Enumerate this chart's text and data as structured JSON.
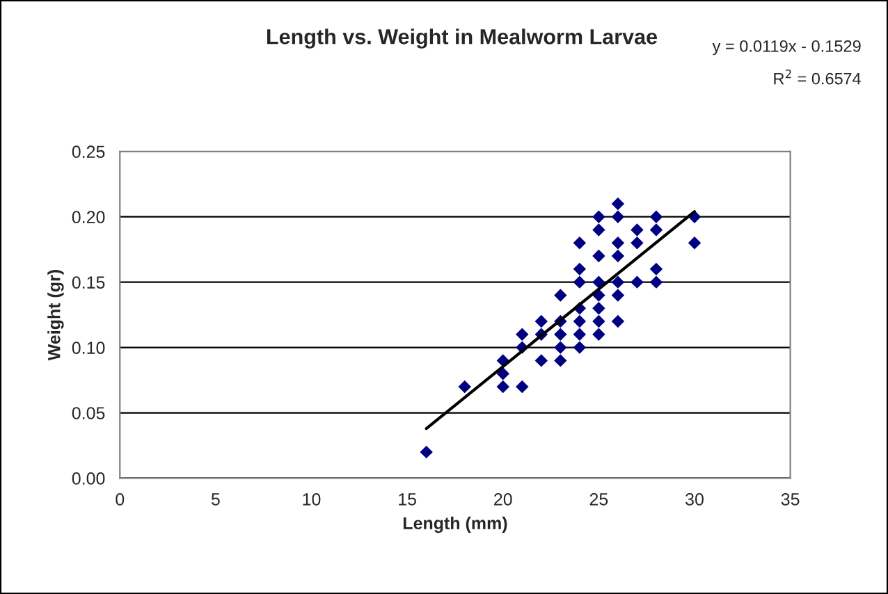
{
  "chart_data": {
    "type": "scatter",
    "title": "Length vs. Weight in Mealworm Larvae",
    "xlabel": "Length (mm)",
    "ylabel": "Weight (gr)",
    "annotations": [
      "y = 0.0119x - 0.1529",
      "R$^{2}$ = 0.6574"
    ],
    "series": [
      {
        "color": "#000080",
        "marker": "diamond",
        "x": [
          16,
          18,
          20,
          20,
          20,
          21,
          21,
          21,
          22,
          22,
          22,
          23,
          23,
          23,
          23,
          23,
          24,
          24,
          24,
          24,
          24,
          24,
          24,
          25,
          25,
          25,
          25,
          25,
          25,
          25,
          25,
          26,
          26,
          26,
          26,
          26,
          26,
          26,
          27,
          27,
          27,
          28,
          28,
          28,
          28,
          30,
          30
        ],
        "values": [
          0.02,
          0.07,
          0.07,
          0.08,
          0.09,
          0.07,
          0.1,
          0.11,
          0.09,
          0.11,
          0.12,
          0.09,
          0.1,
          0.11,
          0.12,
          0.14,
          0.1,
          0.11,
          0.12,
          0.13,
          0.15,
          0.16,
          0.18,
          0.11,
          0.12,
          0.13,
          0.14,
          0.15,
          0.17,
          0.19,
          0.2,
          0.12,
          0.14,
          0.15,
          0.17,
          0.18,
          0.2,
          0.21,
          0.15,
          0.18,
          0.19,
          0.15,
          0.16,
          0.19,
          0.2,
          0.18,
          0.2
        ]
      },
      {
        "type": "line",
        "color": "#000000",
        "x": [
          16,
          30
        ],
        "values": [
          0.038,
          0.204
        ]
      }
    ],
    "xlim": [
      0,
      35
    ],
    "xticks": [
      0,
      5,
      10,
      15,
      20,
      25,
      30,
      35
    ],
    "ylim": [
      0,
      0.25
    ],
    "yticks": [
      {
        "value": 0,
        "label": "0.00"
      },
      {
        "value": 0.05,
        "label": "0.05"
      },
      {
        "value": 0.1,
        "label": "0.10"
      },
      {
        "value": 0.15,
        "label": "0.15"
      },
      {
        "value": 0.2,
        "label": "0.20"
      },
      {
        "value": 0.25,
        "label": "0.25"
      }
    ],
    "grid": "y",
    "legend": false
  }
}
